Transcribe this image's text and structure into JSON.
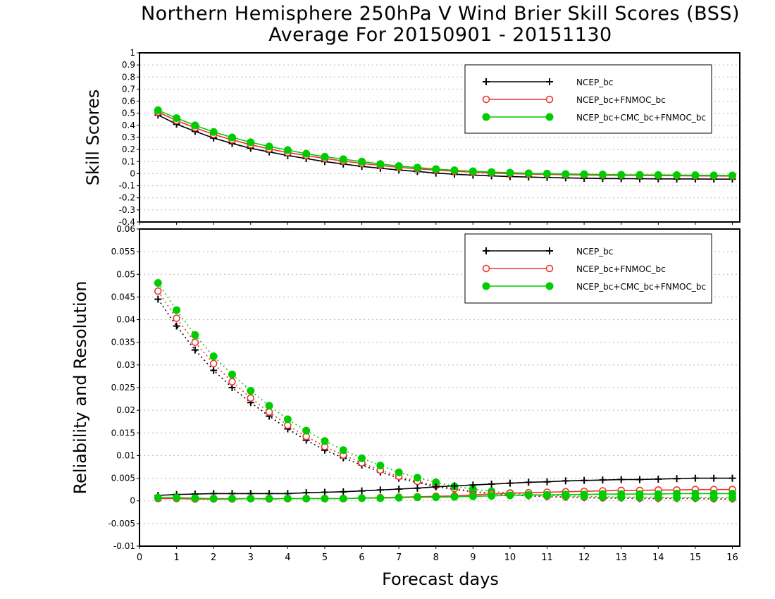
{
  "title_line1": "Northern Hemisphere 250hPa V Wind Brier Skill Scores (BSS)",
  "title_line2": "Average For 20150901 - 20151130",
  "xlabel": "Forecast days",
  "colors": {
    "NCEP_bc": "#000000",
    "NCEP_bc+FNMOC_bc": "#ee3333",
    "NCEP_bc+CMC_bc+FNMOC_bc": "#00cc00"
  },
  "chart_data": [
    {
      "type": "line",
      "ylabel": "Skill Scores",
      "xlim": [
        0,
        16.2
      ],
      "ylim": [
        -0.4,
        1
      ],
      "y_ticks": [
        "-0.4",
        "-0.3",
        "-0.2",
        "-0.1",
        "0",
        "0.1",
        "0.2",
        "0.3",
        "0.4",
        "0.5",
        "0.6",
        "0.7",
        "0.8",
        "0.9",
        "1"
      ],
      "x_ticks": [
        "0",
        "1",
        "2",
        "3",
        "4",
        "5",
        "6",
        "7",
        "8",
        "9",
        "10",
        "11",
        "12",
        "13",
        "14",
        "15",
        "16"
      ],
      "grid": true,
      "legend_position": "top-right",
      "x": [
        0.5,
        1,
        1.5,
        2,
        2.5,
        3,
        3.5,
        4,
        4.5,
        5,
        5.5,
        6,
        6.5,
        7,
        7.5,
        8,
        8.5,
        9,
        9.5,
        10,
        10.5,
        11,
        11.5,
        12,
        12.5,
        13,
        13.5,
        14,
        14.5,
        15,
        15.5,
        16
      ],
      "series": [
        {
          "name": "NCEP_bc",
          "marker": "plus",
          "line": "solid",
          "values": [
            0.485,
            0.41,
            0.35,
            0.295,
            0.25,
            0.21,
            0.18,
            0.15,
            0.125,
            0.1,
            0.08,
            0.06,
            0.045,
            0.03,
            0.018,
            0.005,
            -0.005,
            -0.012,
            -0.018,
            -0.024,
            -0.028,
            -0.032,
            -0.035,
            -0.038,
            -0.04,
            -0.041,
            -0.042,
            -0.043,
            -0.044,
            -0.044,
            -0.045,
            -0.045
          ]
        },
        {
          "name": "NCEP_bc+FNMOC_bc",
          "marker": "open-circle",
          "line": "solid",
          "values": [
            0.51,
            0.44,
            0.38,
            0.325,
            0.28,
            0.24,
            0.205,
            0.175,
            0.15,
            0.125,
            0.105,
            0.085,
            0.068,
            0.052,
            0.04,
            0.03,
            0.02,
            0.012,
            0.005,
            0.0,
            -0.003,
            -0.006,
            -0.009,
            -0.011,
            -0.013,
            -0.014,
            -0.015,
            -0.016,
            -0.017,
            -0.018,
            -0.019,
            -0.02
          ]
        },
        {
          "name": "NCEP_bc+CMC_bc+FNMOC_bc",
          "marker": "filled-circle",
          "line": "solid",
          "values": [
            0.525,
            0.46,
            0.4,
            0.345,
            0.3,
            0.26,
            0.225,
            0.195,
            0.165,
            0.14,
            0.12,
            0.1,
            0.08,
            0.063,
            0.05,
            0.038,
            0.028,
            0.02,
            0.013,
            0.008,
            0.003,
            0.0,
            -0.003,
            -0.005,
            -0.007,
            -0.009,
            -0.01,
            -0.011,
            -0.012,
            -0.013,
            -0.014,
            -0.015
          ]
        }
      ]
    },
    {
      "type": "line",
      "ylabel": "Reliability and Resolution",
      "xlim": [
        0,
        16.2
      ],
      "ylim": [
        -0.01,
        0.06
      ],
      "y_ticks": [
        "-0.01",
        "-0.005",
        "0",
        "0.005",
        "0.01",
        "0.015",
        "0.02",
        "0.025",
        "0.03",
        "0.035",
        "0.04",
        "0.045",
        "0.05",
        "0.055",
        "0.06"
      ],
      "x_ticks": [
        "0",
        "1",
        "2",
        "3",
        "4",
        "5",
        "6",
        "7",
        "8",
        "9",
        "10",
        "11",
        "12",
        "13",
        "14",
        "15",
        "16"
      ],
      "grid": true,
      "legend_position": "top-right",
      "x": [
        0.5,
        1,
        1.5,
        2,
        2.5,
        3,
        3.5,
        4,
        4.5,
        5,
        5.5,
        6,
        6.5,
        7,
        7.5,
        8,
        8.5,
        9,
        9.5,
        10,
        10.5,
        11,
        11.5,
        12,
        12.5,
        13,
        13.5,
        14,
        14.5,
        15,
        15.5,
        16
      ],
      "series": [
        {
          "name": "NCEP_bc",
          "kind": "resolution",
          "marker": "plus",
          "line": "dotted",
          "values": [
            0.0445,
            0.0386,
            0.0333,
            0.0288,
            0.025,
            0.0217,
            0.0187,
            0.0159,
            0.0134,
            0.0112,
            0.0095,
            0.0079,
            0.0064,
            0.005,
            0.004,
            0.0032,
            0.0025,
            0.002,
            0.0016,
            0.0013,
            0.0011,
            0.0009,
            0.0008,
            0.0007,
            0.0006,
            0.0006,
            0.0005,
            0.0005,
            0.0005,
            0.0005,
            0.0004,
            0.0004
          ]
        },
        {
          "name": "NCEP_bc+FNMOC_bc",
          "kind": "resolution",
          "marker": "open-circle",
          "line": "dotted",
          "values": [
            0.0463,
            0.0403,
            0.035,
            0.0303,
            0.0263,
            0.0227,
            0.0196,
            0.0167,
            0.0142,
            0.012,
            0.0101,
            0.0084,
            0.0068,
            0.0054,
            0.0043,
            0.0034,
            0.0027,
            0.0021,
            0.0017,
            0.0014,
            0.0012,
            0.001,
            0.0009,
            0.0008,
            0.0007,
            0.0007,
            0.0006,
            0.0006,
            0.0006,
            0.0006,
            0.0005,
            0.0005
          ]
        },
        {
          "name": "NCEP_bc+CMC_bc+FNMOC_bc",
          "kind": "resolution",
          "marker": "filled-circle",
          "line": "dotted",
          "values": [
            0.0481,
            0.0421,
            0.0366,
            0.0319,
            0.0279,
            0.0243,
            0.021,
            0.018,
            0.0155,
            0.0132,
            0.0112,
            0.0094,
            0.0078,
            0.0063,
            0.0051,
            0.0041,
            0.0032,
            0.0026,
            0.0021,
            0.0017,
            0.0014,
            0.0012,
            0.0011,
            0.001,
            0.0009,
            0.0008,
            0.0008,
            0.0008,
            0.0007,
            0.0007,
            0.0007,
            0.0007
          ]
        },
        {
          "name": "NCEP_bc",
          "kind": "reliability",
          "marker": "plus",
          "line": "solid",
          "values": [
            0.0012,
            0.0014,
            0.0015,
            0.0016,
            0.0016,
            0.0016,
            0.0016,
            0.0016,
            0.0018,
            0.0019,
            0.002,
            0.0022,
            0.0024,
            0.0026,
            0.0028,
            0.0031,
            0.0033,
            0.0035,
            0.0037,
            0.0039,
            0.0041,
            0.0042,
            0.0044,
            0.0045,
            0.0046,
            0.0047,
            0.0047,
            0.0048,
            0.0049,
            0.005,
            0.005,
            0.005
          ]
        },
        {
          "name": "NCEP_bc+FNMOC_bc",
          "kind": "reliability",
          "marker": "open-circle",
          "line": "solid",
          "values": [
            0.0005,
            0.0005,
            0.0004,
            0.0004,
            0.0004,
            0.0005,
            0.0004,
            0.0005,
            0.0005,
            0.0005,
            0.0005,
            0.0006,
            0.0007,
            0.0008,
            0.0009,
            0.001,
            0.0011,
            0.0013,
            0.0015,
            0.0017,
            0.0018,
            0.0019,
            0.002,
            0.0021,
            0.0022,
            0.0023,
            0.0023,
            0.0024,
            0.0024,
            0.0025,
            0.0025,
            0.0025
          ]
        },
        {
          "name": "NCEP_bc+CMC_bc+FNMOC_bc",
          "kind": "reliability",
          "marker": "filled-circle",
          "line": "solid",
          "values": [
            0.0007,
            0.0007,
            0.0006,
            0.0005,
            0.0005,
            0.0005,
            0.0005,
            0.0005,
            0.0005,
            0.0005,
            0.0005,
            0.0006,
            0.0006,
            0.0007,
            0.0008,
            0.0008,
            0.0009,
            0.001,
            0.0011,
            0.0012,
            0.0013,
            0.0013,
            0.0014,
            0.0014,
            0.0015,
            0.0015,
            0.0015,
            0.0015,
            0.0016,
            0.0016,
            0.0016,
            0.0016
          ]
        }
      ]
    }
  ]
}
